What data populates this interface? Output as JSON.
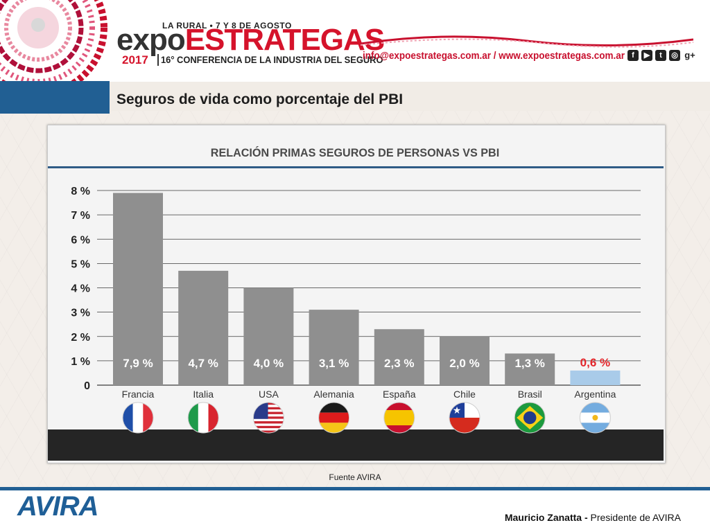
{
  "header": {
    "event_date": "LA RURAL • 7 Y 8 DE AGOSTO",
    "logo_part1": "expo",
    "logo_part2": "ESTRATEGAS",
    "year": "2017",
    "conference": "16° CONFERENCIA DE LA INDUSTRIA DEL SEGURO",
    "contact": "info@expoestrategas.com.ar / www.expoestrategas.com.ar",
    "social_icons": [
      "facebook-icon",
      "youtube-icon",
      "twitter-icon",
      "instagram-icon",
      "google-plus-icon"
    ],
    "google_plus_text": "g+"
  },
  "slide_title": "Seguros de vida como porcentaje del PBI",
  "chart_data": {
    "type": "bar",
    "title": "RELACIÓN PRIMAS SEGUROS DE PERSONAS VS PBI",
    "categories": [
      "Francia",
      "Italia",
      "USA",
      "Alemania",
      "España",
      "Chile",
      "Brasil",
      "Argentina"
    ],
    "values": [
      7.9,
      4.7,
      4.0,
      3.1,
      2.3,
      2.0,
      1.3,
      0.6
    ],
    "value_labels": [
      "7,9 %",
      "4,7 %",
      "4,0 %",
      "3,1 %",
      "2,3 %",
      "2,0 %",
      "1,3 %",
      "0,6 %"
    ],
    "yticks": [
      "0",
      "1 %",
      "2 %",
      "3 %",
      "4 %",
      "5 %",
      "6 %",
      "7 %",
      "8 %"
    ],
    "ylim": [
      0,
      8
    ],
    "grid": true,
    "colors": {
      "bar": "#8f8f8f",
      "highlight_bar": "#a9cbe9",
      "highlight_label": "#e3262b",
      "grid": "#3a3a3a"
    },
    "highlight_category": "Argentina",
    "flags": [
      "france-flag-icon",
      "italy-flag-icon",
      "usa-flag-icon",
      "germany-flag-icon",
      "spain-flag-icon",
      "chile-flag-icon",
      "brazil-flag-icon",
      "argentina-flag-icon"
    ]
  },
  "source": "Fuente AVIRA",
  "footer": {
    "logo": "AVIRA",
    "presenter_name": "Mauricio Zanatta -",
    "presenter_role": " Presidente de AVIRA"
  }
}
